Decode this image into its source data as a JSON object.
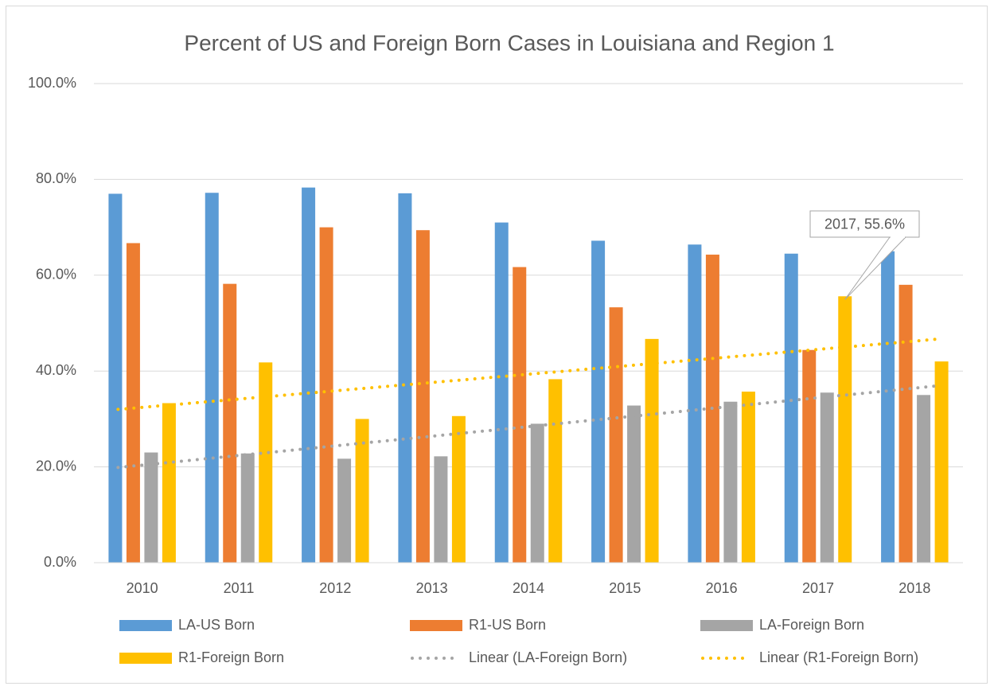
{
  "chart_data": {
    "type": "bar",
    "title": "Percent of US and Foreign Born Cases in Louisiana and Region 1",
    "categories": [
      "2010",
      "2011",
      "2012",
      "2013",
      "2014",
      "2015",
      "2016",
      "2017",
      "2018"
    ],
    "series": [
      {
        "name": "LA-US Born",
        "color": "#5b9bd5",
        "values": [
          77.0,
          77.2,
          78.3,
          77.1,
          71.0,
          67.2,
          66.4,
          64.5,
          65.0
        ]
      },
      {
        "name": "R1-US Born",
        "color": "#ed7d31",
        "values": [
          66.7,
          58.2,
          70.0,
          69.4,
          61.7,
          53.3,
          64.3,
          44.4,
          58.0
        ]
      },
      {
        "name": "LA-Foreign Born",
        "color": "#a5a5a5",
        "values": [
          23.0,
          22.8,
          21.7,
          22.2,
          29.0,
          32.8,
          33.6,
          35.5,
          35.0
        ],
        "trendline": {
          "name": "Linear (LA-Foreign Born)",
          "color": "#a5a5a5"
        }
      },
      {
        "name": "R1-Foreign Born",
        "color": "#ffc000",
        "values": [
          33.3,
          41.8,
          30.0,
          30.6,
          38.3,
          46.7,
          35.7,
          55.6,
          42.0
        ],
        "trendline": {
          "name": "Linear (R1-Foreign Born)",
          "color": "#ffc000"
        }
      }
    ],
    "annotation": {
      "text": "2017, 55.6%",
      "series": 3,
      "category": 7
    },
    "ylim": [
      0,
      100
    ],
    "yticks": [
      {
        "value": 0,
        "label": "0.0%"
      },
      {
        "value": 20,
        "label": "20.0%"
      },
      {
        "value": 40,
        "label": "40.0%"
      },
      {
        "value": 60,
        "label": "60.0%"
      },
      {
        "value": 80,
        "label": "80.0%"
      },
      {
        "value": 100,
        "label": "100.0%"
      }
    ],
    "grid": true,
    "legend": "bottom"
  }
}
